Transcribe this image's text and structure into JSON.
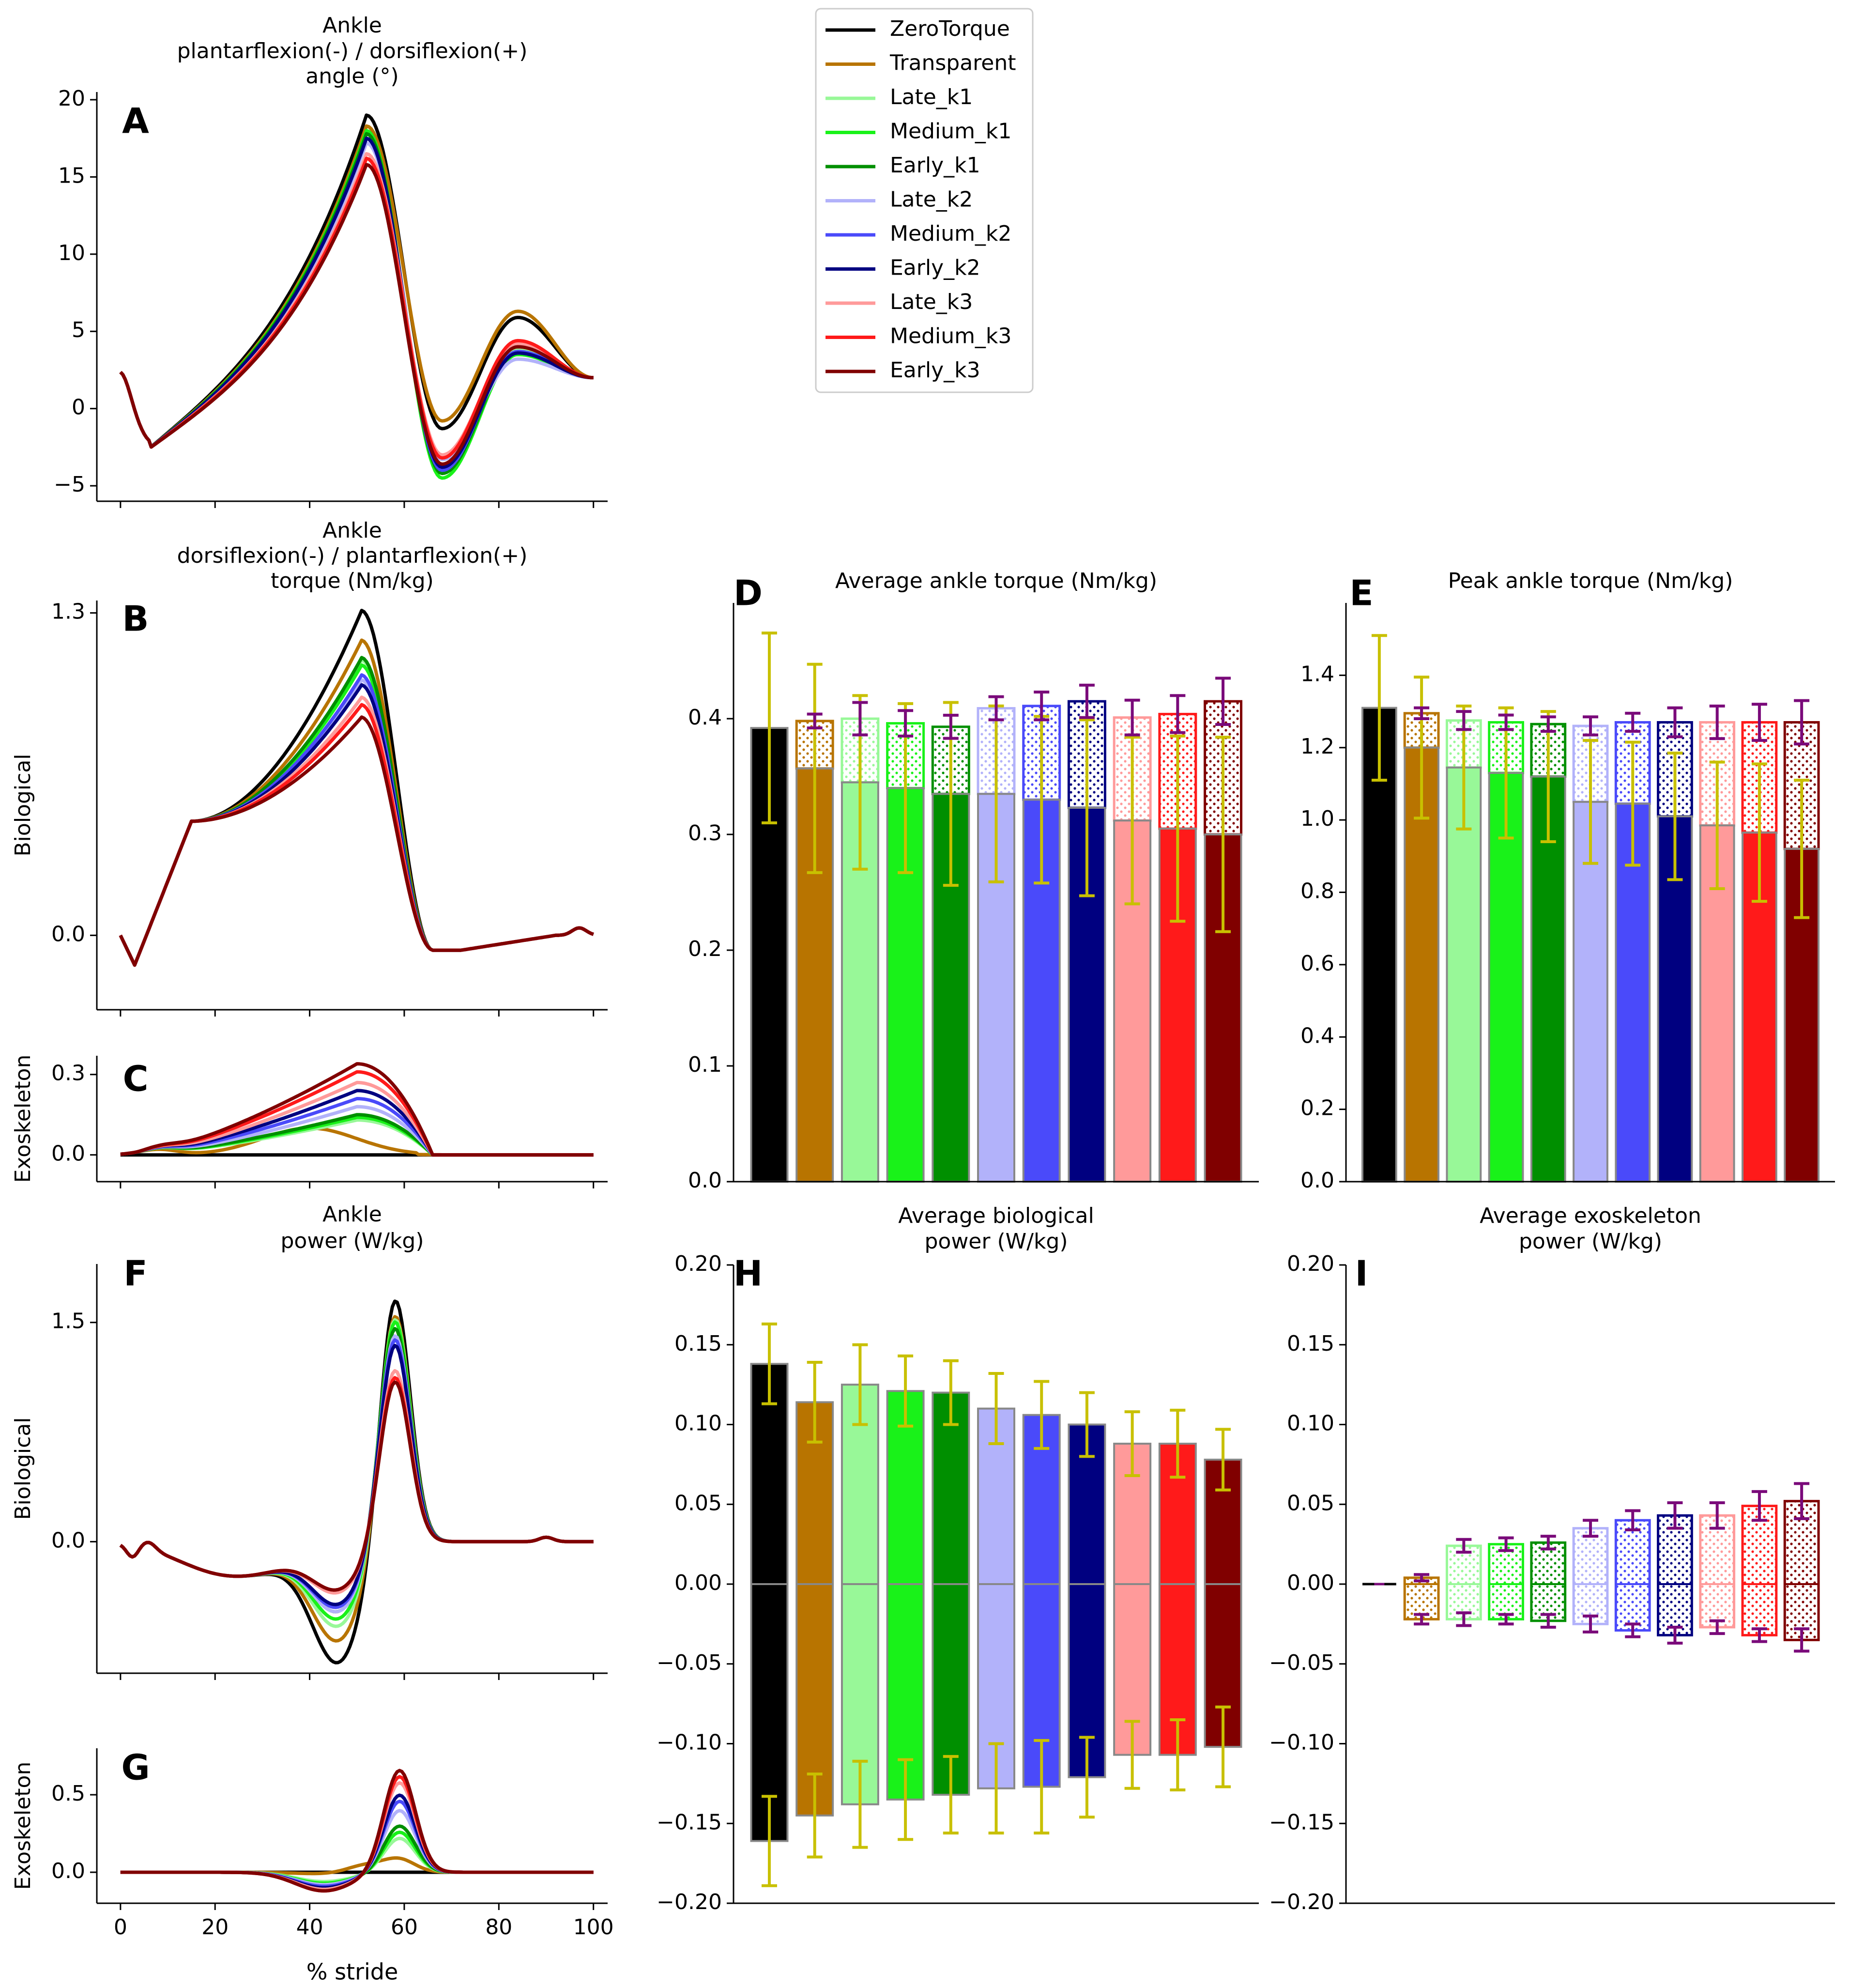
{
  "legend": {
    "entries": [
      {
        "name": "ZeroTorque",
        "color": "#000000"
      },
      {
        "name": "Transparent",
        "color": "#b87400"
      },
      {
        "name": "Late_k1",
        "color": "#98f898"
      },
      {
        "name": "Medium_k1",
        "color": "#19f219"
      },
      {
        "name": "Early_k1",
        "color": "#008f00"
      },
      {
        "name": "Late_k2",
        "color": "#b2b2fa"
      },
      {
        "name": "Medium_k2",
        "color": "#4a4afa"
      },
      {
        "name": "Early_k2",
        "color": "#000080"
      },
      {
        "name": "Late_k3",
        "color": "#ff9a9a"
      },
      {
        "name": "Medium_k3",
        "color": "#ff1a1a"
      },
      {
        "name": "Early_k3",
        "color": "#800000"
      }
    ]
  },
  "colors": {
    "errorbar_group": "#c8c000",
    "errorbar_condition": "#7a0a7a",
    "axis": "#000000"
  },
  "shared": {
    "xlabel": "% stride",
    "xticks": [
      "0",
      "20",
      "40",
      "60",
      "80",
      "100"
    ]
  },
  "chart_data": [
    {
      "id": "A",
      "type": "line",
      "title_lines": [
        "Ankle",
        "plantarflexion(-) / dorsiflexion(+)",
        "angle (°)"
      ],
      "ylabel": "",
      "ylim": [
        -6,
        20.5
      ],
      "yticks": [
        {
          "v": -5,
          "t": "−5"
        },
        {
          "v": 0,
          "t": "0"
        },
        {
          "v": 5,
          "t": "5"
        },
        {
          "v": 10,
          "t": "10"
        },
        {
          "v": 15,
          "t": "15"
        },
        {
          "v": 20,
          "t": "20"
        }
      ],
      "xlim": [
        -5,
        103
      ],
      "series_model": {
        "kind": "angle",
        "peak": [
          19,
          18.3,
          17.5,
          18,
          17.8,
          17.2,
          17.5,
          17.5,
          16.5,
          16.2,
          15.8
        ],
        "trough": [
          -1.3,
          -0.8,
          -3.9,
          -4.5,
          -4.2,
          -3.3,
          -4.0,
          -3.8,
          -3.0,
          -3.2,
          -3.6
        ],
        "swing": [
          5.9,
          6.3,
          3.8,
          3.5,
          3.6,
          3.2,
          3.7,
          3.6,
          4.2,
          4.4,
          4.0
        ]
      }
    },
    {
      "id": "B",
      "type": "line",
      "title_lines": [
        "Ankle",
        "dorsiflexion(-) / plantarflexion(+)",
        "torque (Nm/kg)"
      ],
      "ylabel": "Biological",
      "ylim": [
        -0.3,
        1.35
      ],
      "yticks": [
        {
          "v": 0,
          "t": "0.0"
        },
        {
          "v": 1.3,
          "t": "1.3"
        }
      ],
      "xlim": [
        -5,
        103
      ],
      "series_model": {
        "kind": "torque",
        "peak": [
          1.31,
          1.19,
          1.11,
          1.09,
          1.12,
          1.03,
          1.05,
          1.01,
          0.96,
          0.93,
          0.88
        ]
      }
    },
    {
      "id": "C",
      "type": "line",
      "title_lines": [],
      "ylabel": "Exoskeleton",
      "ylim": [
        -0.1,
        0.37
      ],
      "yticks": [
        {
          "v": 0,
          "t": "0.0"
        },
        {
          "v": 0.3,
          "t": "0.3"
        }
      ],
      "xlim": [
        -5,
        103
      ],
      "series_model": {
        "kind": "exotorque",
        "peak": [
          0,
          0.1,
          0.13,
          0.14,
          0.15,
          0.18,
          0.21,
          0.24,
          0.27,
          0.31,
          0.34
        ]
      }
    },
    {
      "id": "D",
      "type": "bar",
      "title_lines": [
        "Average ankle torque (Nm/kg)"
      ],
      "ylim": [
        0,
        0.5
      ],
      "yticks": [
        {
          "v": 0,
          "t": "0.0"
        },
        {
          "v": 0.1,
          "t": "0.1"
        },
        {
          "v": 0.2,
          "t": "0.2"
        },
        {
          "v": 0.3,
          "t": "0.3"
        },
        {
          "v": 0.4,
          "t": "0.4"
        }
      ],
      "categories": [
        "ZeroTorque",
        "Transparent",
        "Late_k1",
        "Medium_k1",
        "Early_k1",
        "Late_k2",
        "Medium_k2",
        "Early_k2",
        "Late_k3",
        "Medium_k3",
        "Early_k3"
      ],
      "biological": [
        0.392,
        0.357,
        0.345,
        0.34,
        0.335,
        0.335,
        0.33,
        0.323,
        0.312,
        0.305,
        0.3
      ],
      "total": [
        0.392,
        0.398,
        0.4,
        0.396,
        0.393,
        0.409,
        0.411,
        0.415,
        0.401,
        0.404,
        0.415
      ],
      "bio_err": [
        0.082,
        0.09,
        0.075,
        0.073,
        0.079,
        0.076,
        0.072,
        0.076,
        0.072,
        0.08,
        0.084
      ],
      "total_err": [
        0,
        0.006,
        0.014,
        0.011,
        0.01,
        0.01,
        0.012,
        0.014,
        0.015,
        0.016,
        0.02
      ]
    },
    {
      "id": "E",
      "type": "bar",
      "title_lines": [
        "Peak ankle torque (Nm/kg)"
      ],
      "ylim": [
        0,
        1.6
      ],
      "yticks": [
        {
          "v": 0,
          "t": "0.0"
        },
        {
          "v": 0.2,
          "t": "0.2"
        },
        {
          "v": 0.4,
          "t": "0.4"
        },
        {
          "v": 0.6,
          "t": "0.6"
        },
        {
          "v": 0.8,
          "t": "0.8"
        },
        {
          "v": 1.0,
          "t": "1.0"
        },
        {
          "v": 1.2,
          "t": "1.2"
        },
        {
          "v": 1.4,
          "t": "1.4"
        }
      ],
      "categories": [
        "ZeroTorque",
        "Transparent",
        "Late_k1",
        "Medium_k1",
        "Early_k1",
        "Late_k2",
        "Medium_k2",
        "Early_k2",
        "Late_k3",
        "Medium_k3",
        "Early_k3"
      ],
      "biological": [
        1.31,
        1.2,
        1.145,
        1.13,
        1.12,
        1.05,
        1.045,
        1.01,
        0.985,
        0.965,
        0.92
      ],
      "total": [
        1.31,
        1.295,
        1.275,
        1.27,
        1.265,
        1.26,
        1.27,
        1.27,
        1.27,
        1.27,
        1.27
      ],
      "bio_err": [
        0.2,
        0.195,
        0.17,
        0.18,
        0.18,
        0.17,
        0.17,
        0.175,
        0.175,
        0.19,
        0.19
      ],
      "total_err": [
        0,
        0.015,
        0.025,
        0.02,
        0.02,
        0.025,
        0.025,
        0.04,
        0.045,
        0.05,
        0.06
      ]
    },
    {
      "id": "F",
      "type": "line",
      "title_lines": [
        "Ankle",
        "power (W/kg)"
      ],
      "ylabel": "Biological",
      "ylim": [
        -0.9,
        1.9
      ],
      "yticks": [
        {
          "v": 0,
          "t": "0.0"
        },
        {
          "v": 1.5,
          "t": "1.5"
        }
      ],
      "xlim": [
        -5,
        103
      ],
      "series_model": {
        "kind": "power",
        "peak": [
          1.72,
          1.6,
          1.57,
          1.55,
          1.5,
          1.45,
          1.42,
          1.38,
          1.2,
          1.15,
          1.12
        ],
        "neg": [
          -0.8,
          -0.65,
          -0.55,
          -0.5,
          -0.45,
          -0.45,
          -0.42,
          -0.4,
          -0.32,
          -0.3,
          -0.3
        ]
      }
    },
    {
      "id": "G",
      "type": "line",
      "title_lines": [],
      "ylabel": "Exoskeleton",
      "ylim": [
        -0.2,
        0.8
      ],
      "yticks": [
        {
          "v": 0,
          "t": "0.0"
        },
        {
          "v": 0.5,
          "t": "0.5"
        }
      ],
      "xlim": [
        -5,
        103
      ],
      "series_model": {
        "kind": "exopower",
        "peak": [
          0,
          0.08,
          0.22,
          0.26,
          0.3,
          0.4,
          0.46,
          0.5,
          0.58,
          0.62,
          0.66
        ],
        "neg": [
          0,
          -0.01,
          -0.06,
          -0.07,
          -0.08,
          -0.08,
          -0.09,
          -0.1,
          -0.11,
          -0.12,
          -0.12
        ]
      }
    },
    {
      "id": "H",
      "type": "bar",
      "title_lines": [
        "Average biological",
        "power (W/kg)"
      ],
      "ylim": [
        -0.2,
        0.2
      ],
      "yticks": [
        {
          "v": -0.2,
          "t": "−0.20"
        },
        {
          "v": -0.15,
          "t": "−0.15"
        },
        {
          "v": -0.1,
          "t": "−0.10"
        },
        {
          "v": -0.05,
          "t": "−0.05"
        },
        {
          "v": 0,
          "t": "0.00"
        },
        {
          "v": 0.05,
          "t": "0.05"
        },
        {
          "v": 0.1,
          "t": "0.10"
        },
        {
          "v": 0.15,
          "t": "0.15"
        },
        {
          "v": 0.2,
          "t": "0.20"
        }
      ],
      "categories": [
        "ZeroTorque",
        "Transparent",
        "Late_k1",
        "Medium_k1",
        "Early_k1",
        "Late_k2",
        "Medium_k2",
        "Early_k2",
        "Late_k3",
        "Medium_k3",
        "Early_k3"
      ],
      "positive": [
        0.138,
        0.114,
        0.125,
        0.121,
        0.12,
        0.11,
        0.106,
        0.1,
        0.088,
        0.088,
        0.078
      ],
      "negative": [
        -0.161,
        -0.145,
        -0.138,
        -0.135,
        -0.132,
        -0.128,
        -0.127,
        -0.121,
        -0.107,
        -0.107,
        -0.102
      ],
      "pos_err": [
        0.025,
        0.025,
        0.025,
        0.022,
        0.02,
        0.022,
        0.021,
        0.02,
        0.02,
        0.021,
        0.019
      ],
      "neg_err": [
        0.028,
        0.026,
        0.027,
        0.025,
        0.024,
        0.028,
        0.029,
        0.025,
        0.021,
        0.022,
        0.025
      ]
    },
    {
      "id": "I",
      "type": "bar",
      "title_lines": [
        "Average exoskeleton",
        "power (W/kg)"
      ],
      "ylim": [
        -0.2,
        0.2
      ],
      "yticks": [
        {
          "v": -0.2,
          "t": "−0.20"
        },
        {
          "v": -0.15,
          "t": "−0.15"
        },
        {
          "v": -0.1,
          "t": "−0.10"
        },
        {
          "v": -0.05,
          "t": "−0.05"
        },
        {
          "v": 0,
          "t": "0.00"
        },
        {
          "v": 0.05,
          "t": "0.05"
        },
        {
          "v": 0.1,
          "t": "0.10"
        },
        {
          "v": 0.15,
          "t": "0.15"
        },
        {
          "v": 0.2,
          "t": "0.20"
        }
      ],
      "categories": [
        "ZeroTorque",
        "Transparent",
        "Late_k1",
        "Medium_k1",
        "Early_k1",
        "Late_k2",
        "Medium_k2",
        "Early_k2",
        "Late_k3",
        "Medium_k3",
        "Early_k3"
      ],
      "positive": [
        0,
        0.004,
        0.024,
        0.025,
        0.026,
        0.035,
        0.04,
        0.043,
        0.043,
        0.049,
        0.052
      ],
      "negative": [
        0,
        -0.022,
        -0.022,
        -0.022,
        -0.023,
        -0.025,
        -0.029,
        -0.032,
        -0.027,
        -0.032,
        -0.035
      ],
      "pos_err": [
        0,
        0.002,
        0.004,
        0.004,
        0.004,
        0.005,
        0.006,
        0.008,
        0.008,
        0.009,
        0.011
      ],
      "neg_err": [
        0,
        0.003,
        0.004,
        0.003,
        0.004,
        0.005,
        0.004,
        0.005,
        0.004,
        0.004,
        0.007
      ]
    }
  ]
}
